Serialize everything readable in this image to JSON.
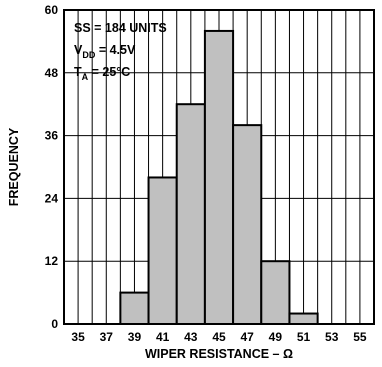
{
  "chart_data": {
    "type": "bar",
    "title": "",
    "xlabel": "WIPER RESISTANCE – Ω",
    "ylabel": "FREQUENCY",
    "x_ticks": [
      "35",
      "37",
      "39",
      "41",
      "43",
      "45",
      "47",
      "49",
      "51",
      "53",
      "55"
    ],
    "xlim": [
      34,
      56
    ],
    "ylim": [
      0,
      60
    ],
    "y_ticks": [
      "0",
      "12",
      "24",
      "36",
      "48",
      "60"
    ],
    "bins": [
      {
        "start": 38,
        "end": 40,
        "value": 6
      },
      {
        "start": 40,
        "end": 42,
        "value": 28
      },
      {
        "start": 42,
        "end": 44,
        "value": 42
      },
      {
        "start": 44,
        "end": 46,
        "value": 56
      },
      {
        "start": 46,
        "end": 48,
        "value": 38
      },
      {
        "start": 48,
        "end": 50,
        "value": 12
      },
      {
        "start": 50,
        "end": 52,
        "value": 2
      }
    ],
    "grid": true,
    "bar_color": "#c0c0c0",
    "annotations": {
      "ss": "SS = 184 UNITS",
      "vdd_main": "V",
      "vdd_sub": "DD",
      "vdd_value": " = 4.5V",
      "ta_main": "T",
      "ta_sub": "A",
      "ta_value": " = 25°C"
    }
  }
}
